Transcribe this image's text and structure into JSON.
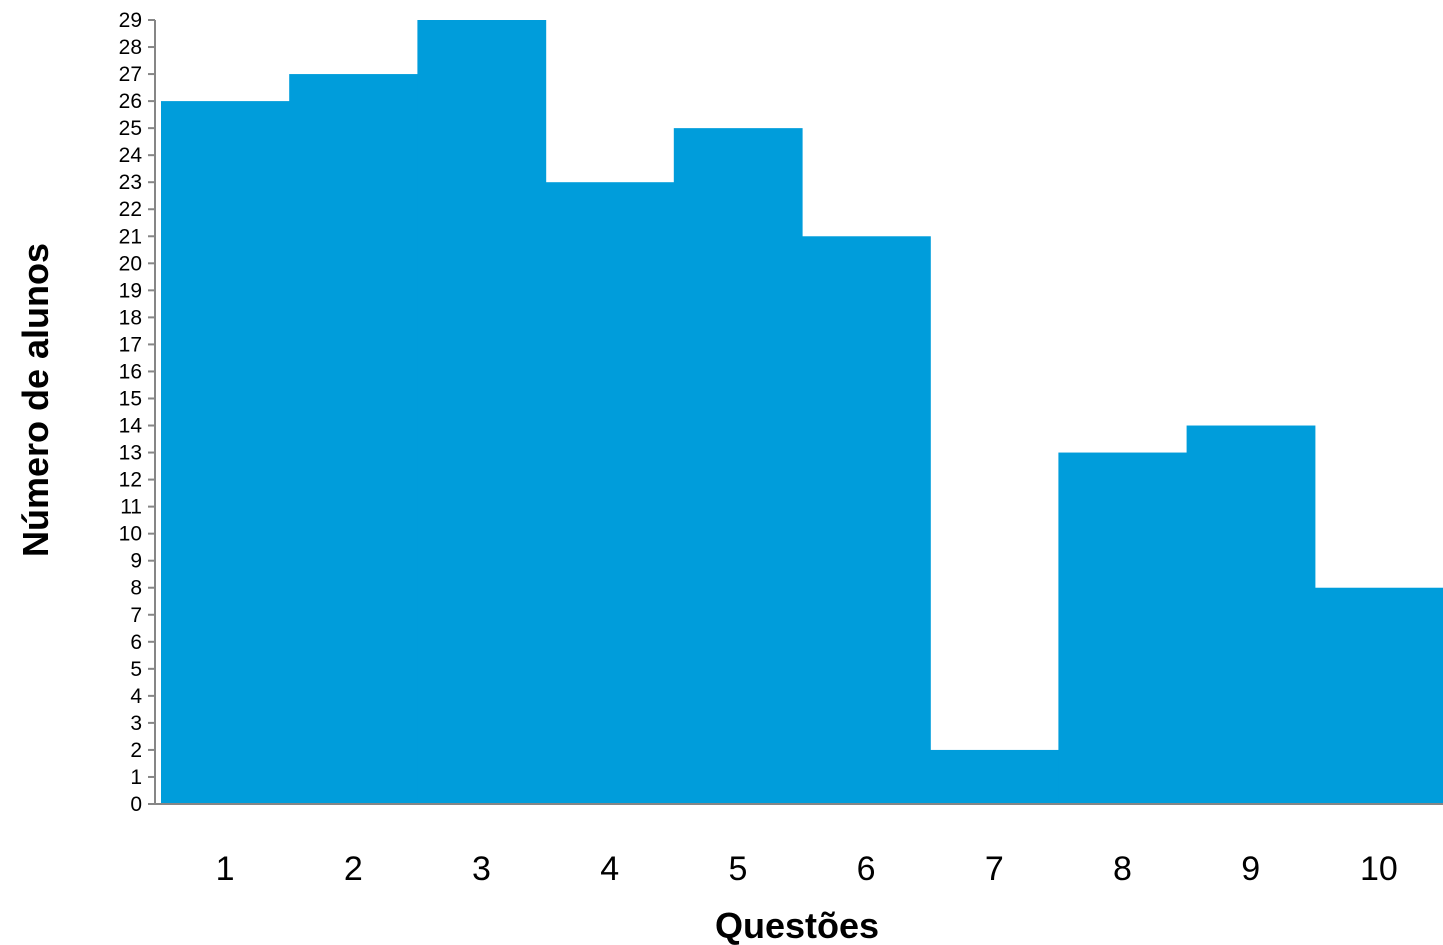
{
  "chart_data": {
    "type": "bar",
    "title": "",
    "xlabel": "Questões",
    "ylabel": "Número de alunos",
    "categories": [
      "1",
      "2",
      "3",
      "4",
      "5",
      "6",
      "7",
      "8",
      "9",
      "10"
    ],
    "values": [
      26,
      27,
      29,
      23,
      25,
      21,
      2,
      13,
      14,
      8
    ],
    "ylim": [
      0,
      29
    ],
    "yticks": [
      "0",
      "1",
      "2",
      "3",
      "4",
      "5",
      "6",
      "7",
      "8",
      "9",
      "10",
      "11",
      "12",
      "13",
      "14",
      "15",
      "16",
      "17",
      "18",
      "19",
      "20",
      "21",
      "22",
      "23",
      "24",
      "25",
      "26",
      "27",
      "28",
      "29"
    ],
    "grid": false,
    "legend": "none",
    "bar_color": "#009DDB",
    "axis_color": "#868686"
  }
}
